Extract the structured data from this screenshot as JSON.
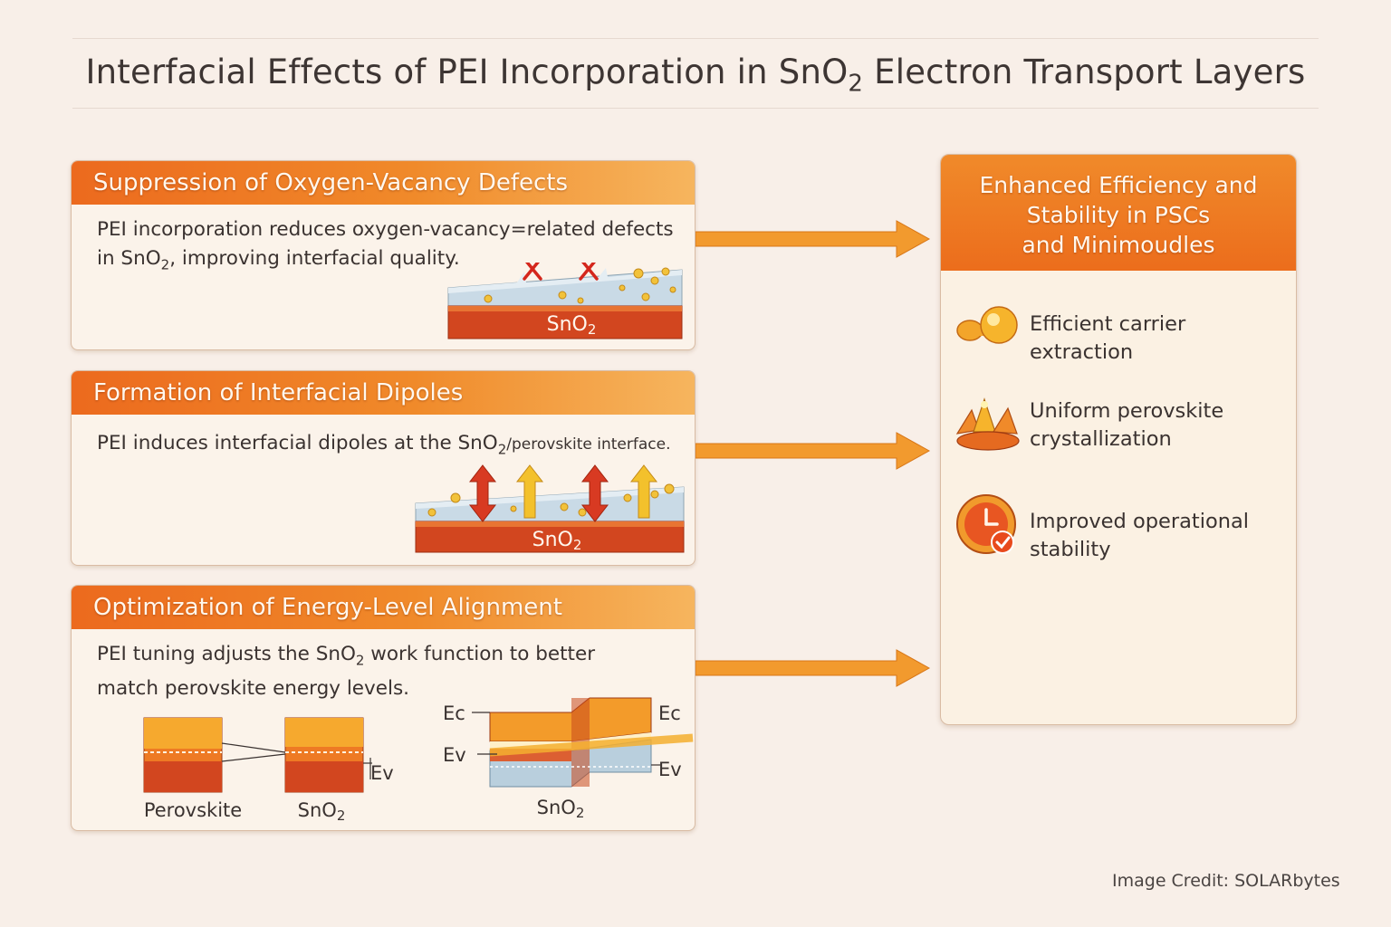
{
  "title": {
    "main": "Interfacial Effects of PEI Incorporation in SnO",
    "sub": "2",
    "rest": " Electron Transport Layers"
  },
  "cards": [
    {
      "header": "Suppression of Oxygen-Vacancy Defects",
      "line1": "PEI incorporation reduces oxygen-vacancy=related defects",
      "line2_pre": "in SnO",
      "line2_sub": "2",
      "line2_post": ", improving interfacial quality.",
      "label_main": "SnO",
      "label_sub": "2"
    },
    {
      "header": "Formation of Interfacial Dipoles",
      "line1_pre": "PEI induces interfacial dipoles at the SnO",
      "line1_sub": "2",
      "line1_post": "/perovskite interface.",
      "label_main": "SnO",
      "label_sub": "2"
    },
    {
      "header": "Optimization of Energy-Level Alignment",
      "line1_pre": "PEI tuning adjusts the SnO",
      "line1_sub": "2",
      "line1_post": " work function to better",
      "line2": "match perovskite energy levels.",
      "diagram": {
        "perovskite_label": "Perovskite",
        "sno2_label_main": "SnO",
        "sno2_label_sub": "2",
        "ev_label": "Ev",
        "ec_left": "Ec",
        "ev_left": "Ev",
        "ec_right": "Ec",
        "ev_right": "Ev",
        "bottom_main": "SnO",
        "bottom_sub": "2"
      }
    }
  ],
  "result": {
    "header_line1": "Enhanced Efficiency and",
    "header_line2": "Stability in PSCs",
    "header_line3": "and Minimoudles",
    "benefits": [
      {
        "icon": "carrier-icon",
        "label": "Efficient carrier extraction"
      },
      {
        "icon": "crystal-icon",
        "label": "Uniform perovskite crystallization"
      },
      {
        "icon": "clock-check-icon",
        "label": "Improved operational stability"
      }
    ]
  },
  "credit": "Image Credit: SOLARbytes",
  "colors": {
    "accent": "#ec6a1e",
    "sno2": "#d04424",
    "blue_layer": "#b7cddc"
  }
}
